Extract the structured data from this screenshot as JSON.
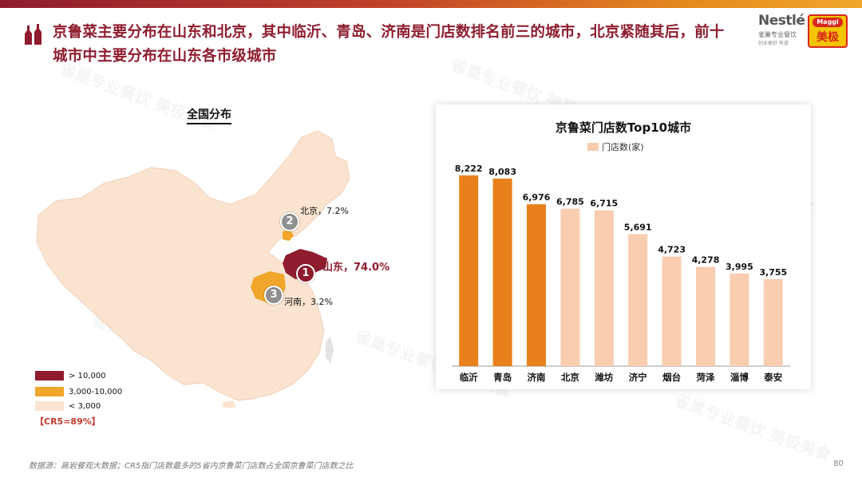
{
  "slide": {
    "title": "京鲁菜主要分布在山东和北京，其中临沂、青岛、济南是门店数排名前三的城市，北京紧随其后，前十城市中主要分布在山东各市级城市",
    "page_number": "80",
    "source_note": "数据源：高岩餐观大数据；CR5指门店数最多的5省内京鲁菜门店数占全国京鲁菜门店数之比",
    "watermark_text": "雀巢专业餐饮 美极美食"
  },
  "logos": {
    "nestle": "Nestlé",
    "nestle_sub": "雀巢专业餐饮",
    "nestle_slogan": "创业更好 有道",
    "maggi_top": "Maggi",
    "maggi_bottom": "美极"
  },
  "map": {
    "title": "全国分布",
    "colors": {
      "base": "#fae4d0",
      "high": "#8e1c2e",
      "mid": "#f0a62a"
    },
    "labels": {
      "beijing": {
        "rank": "2",
        "text": "北京，7.2%"
      },
      "shandong": {
        "rank": "1",
        "text": "山东，74.0%"
      },
      "henan": {
        "rank": "3",
        "text": "河南，3.2%"
      }
    },
    "legend": [
      {
        "label": "> 10,000",
        "color": "#8e1c2e"
      },
      {
        "label": "3,000-10,000",
        "color": "#f0a62a"
      },
      {
        "label": "< 3,000",
        "color": "#fae4d0"
      }
    ],
    "cr5": "【CR5=89%】"
  },
  "chart_data": {
    "type": "bar",
    "title": "京鲁菜门店数Top10城市",
    "legend": [
      "门店数(家)"
    ],
    "categories": [
      "临沂",
      "青岛",
      "济南",
      "北京",
      "潍坊",
      "济宁",
      "烟台",
      "菏泽",
      "淄博",
      "泰安"
    ],
    "values": [
      8222,
      8083,
      6976,
      6785,
      6715,
      5691,
      4723,
      4278,
      3995,
      3755
    ],
    "value_labels": [
      "8,222",
      "8,083",
      "6,976",
      "6,785",
      "6,715",
      "5,691",
      "4,723",
      "4,278",
      "3,995",
      "3,755"
    ],
    "highlight_count": 3,
    "colors": {
      "highlight": "#e8801c",
      "normal": "#f9cdb0"
    },
    "ylim": [
      0,
      8800
    ],
    "grid": false,
    "legend_position": "top"
  }
}
